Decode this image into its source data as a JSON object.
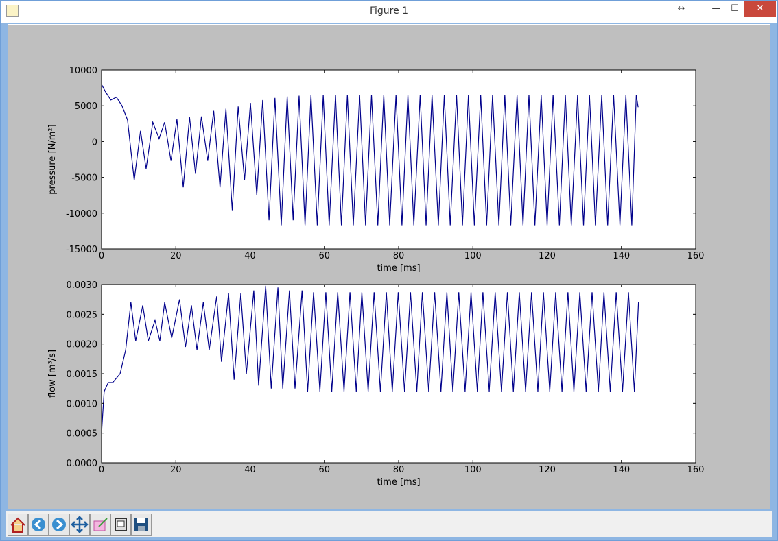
{
  "window": {
    "title": "Figure 1"
  },
  "chart_data": [
    {
      "type": "line",
      "xlabel": "time [ms]",
      "ylabel": "pressure [N/m²]",
      "color": "#00008b",
      "xlim": [
        0,
        160
      ],
      "ylim": [
        -15000,
        10000
      ],
      "xticks": [
        0,
        20,
        40,
        60,
        80,
        100,
        120,
        140,
        160
      ],
      "yticks": [
        -15000,
        -10000,
        -5000,
        0,
        5000,
        10000
      ],
      "x": [
        0,
        1,
        2.5,
        4,
        5.5,
        7,
        8.8,
        10.5,
        12,
        13.8,
        15.5,
        17,
        18.7,
        20.3,
        22,
        23.7,
        25.3,
        26.9,
        28.6,
        30.2,
        31.9,
        33.5,
        35.2,
        36.8,
        38.5,
        40.1,
        41.8,
        43.4,
        45.1,
        46.7,
        48.4,
        50,
        51.6,
        53.2,
        54.8,
        56.4,
        58.1,
        59.7,
        61.3,
        63,
        64.6,
        66.2,
        67.8,
        69.5,
        71.1,
        72.7,
        74.4,
        76,
        77.6,
        79.3,
        80.9,
        82.5,
        84.1,
        85.8,
        87.4,
        89,
        90.7,
        92.3,
        93.9,
        95.6,
        97.2,
        98.8,
        100.4,
        102.1,
        103.7,
        105.3,
        107,
        108.6,
        110.2,
        111.9,
        113.5,
        115.1,
        116.7,
        118.4,
        120,
        121.6,
        123.3,
        124.9,
        126.5,
        128.2,
        129.8,
        131.4,
        133,
        134.7,
        136.3,
        137.9,
        139.6,
        141.2,
        142.8,
        144,
        144.5
      ],
      "values": [
        8000,
        7000,
        5800,
        6200,
        5000,
        3000,
        -5400,
        1500,
        -3800,
        2700,
        400,
        2700,
        -2700,
        3100,
        -6400,
        3400,
        -4500,
        3500,
        -2700,
        4300,
        -6400,
        4600,
        -9600,
        4900,
        -5400,
        5400,
        -7500,
        5800,
        -11000,
        6100,
        -11700,
        6300,
        -11000,
        6400,
        -11700,
        6500,
        -11700,
        6500,
        -11700,
        6500,
        -11700,
        6500,
        -11700,
        6500,
        -11700,
        6500,
        -11700,
        6500,
        -11700,
        6500,
        -11700,
        6500,
        -11700,
        6500,
        -11700,
        6500,
        -11700,
        6500,
        -11700,
        6500,
        -11700,
        6500,
        -11700,
        6500,
        -11700,
        6500,
        -11700,
        6500,
        -11700,
        6500,
        -11700,
        6500,
        -11700,
        6500,
        -11700,
        6500,
        -11700,
        6500,
        -11700,
        6500,
        -11700,
        6500,
        -11700,
        6500,
        -11700,
        6500,
        -11700,
        6500,
        -11700,
        6500,
        4800
      ]
    },
    {
      "type": "line",
      "xlabel": "time [ms]",
      "ylabel": "flow [m³/s]",
      "color": "#00008b",
      "xlim": [
        0,
        160
      ],
      "ylim": [
        0,
        0.003
      ],
      "xticks": [
        0,
        20,
        40,
        60,
        80,
        100,
        120,
        140,
        160
      ],
      "yticks": [
        {
          "value": 0,
          "label": "0.0000"
        },
        {
          "value": 0.0005,
          "label": "0.0005"
        },
        {
          "value": 0.001,
          "label": "0.0010"
        },
        {
          "value": 0.0015,
          "label": "0.0015"
        },
        {
          "value": 0.002,
          "label": "0.0020"
        },
        {
          "value": 0.0025,
          "label": "0.0025"
        },
        {
          "value": 0.003,
          "label": "0.0030"
        }
      ],
      "x": [
        0,
        0.7,
        1.8,
        3,
        5,
        6.5,
        7.9,
        9.2,
        11.1,
        12.6,
        14.4,
        15.7,
        17,
        18.9,
        21,
        22.6,
        24.2,
        25.7,
        27.4,
        29,
        31,
        32.3,
        34.2,
        35.7,
        37.5,
        39,
        41,
        42.3,
        44.2,
        45.7,
        47.5,
        48.8,
        50.6,
        52.1,
        54,
        55.5,
        57.1,
        58.8,
        60.4,
        62,
        63.6,
        65.3,
        66.9,
        68.6,
        70.1,
        71.8,
        73.4,
        75.1,
        76.7,
        78.3,
        79.9,
        81.6,
        83.2,
        84.9,
        86.4,
        88.1,
        89.7,
        91.4,
        93,
        94.6,
        96.2,
        97.9,
        99.5,
        101.2,
        102.7,
        104.4,
        106,
        107.7,
        109.3,
        110.9,
        112.5,
        114.2,
        115.8,
        117.5,
        119,
        120.7,
        122.3,
        124,
        125.6,
        127.2,
        128.8,
        130.5,
        132.1,
        133.8,
        135.3,
        137,
        138.6,
        140.3,
        141.9,
        143.5,
        144.6
      ],
      "values": [
        0.0005,
        0.0012,
        0.00135,
        0.00135,
        0.0015,
        0.0019,
        0.0027,
        0.00205,
        0.00265,
        0.00205,
        0.0024,
        0.00205,
        0.0027,
        0.0021,
        0.00275,
        0.00195,
        0.00265,
        0.0019,
        0.0027,
        0.0019,
        0.0028,
        0.0017,
        0.00285,
        0.0014,
        0.00285,
        0.0015,
        0.0029,
        0.0013,
        0.00298,
        0.00125,
        0.00295,
        0.00125,
        0.0029,
        0.00125,
        0.0029,
        0.0012,
        0.00287,
        0.0012,
        0.00287,
        0.0012,
        0.00287,
        0.0012,
        0.00287,
        0.0012,
        0.00287,
        0.0012,
        0.00287,
        0.0012,
        0.00287,
        0.0012,
        0.00287,
        0.0012,
        0.00287,
        0.0012,
        0.00287,
        0.0012,
        0.00287,
        0.0012,
        0.00287,
        0.0012,
        0.00287,
        0.0012,
        0.00287,
        0.0012,
        0.00287,
        0.0012,
        0.00287,
        0.0012,
        0.00287,
        0.0012,
        0.00287,
        0.0012,
        0.00287,
        0.0012,
        0.00287,
        0.0012,
        0.00287,
        0.0012,
        0.00287,
        0.0012,
        0.00287,
        0.0012,
        0.00287,
        0.0012,
        0.00287,
        0.0012,
        0.00287,
        0.0012,
        0.00287,
        0.0012,
        0.0027
      ]
    }
  ]
}
